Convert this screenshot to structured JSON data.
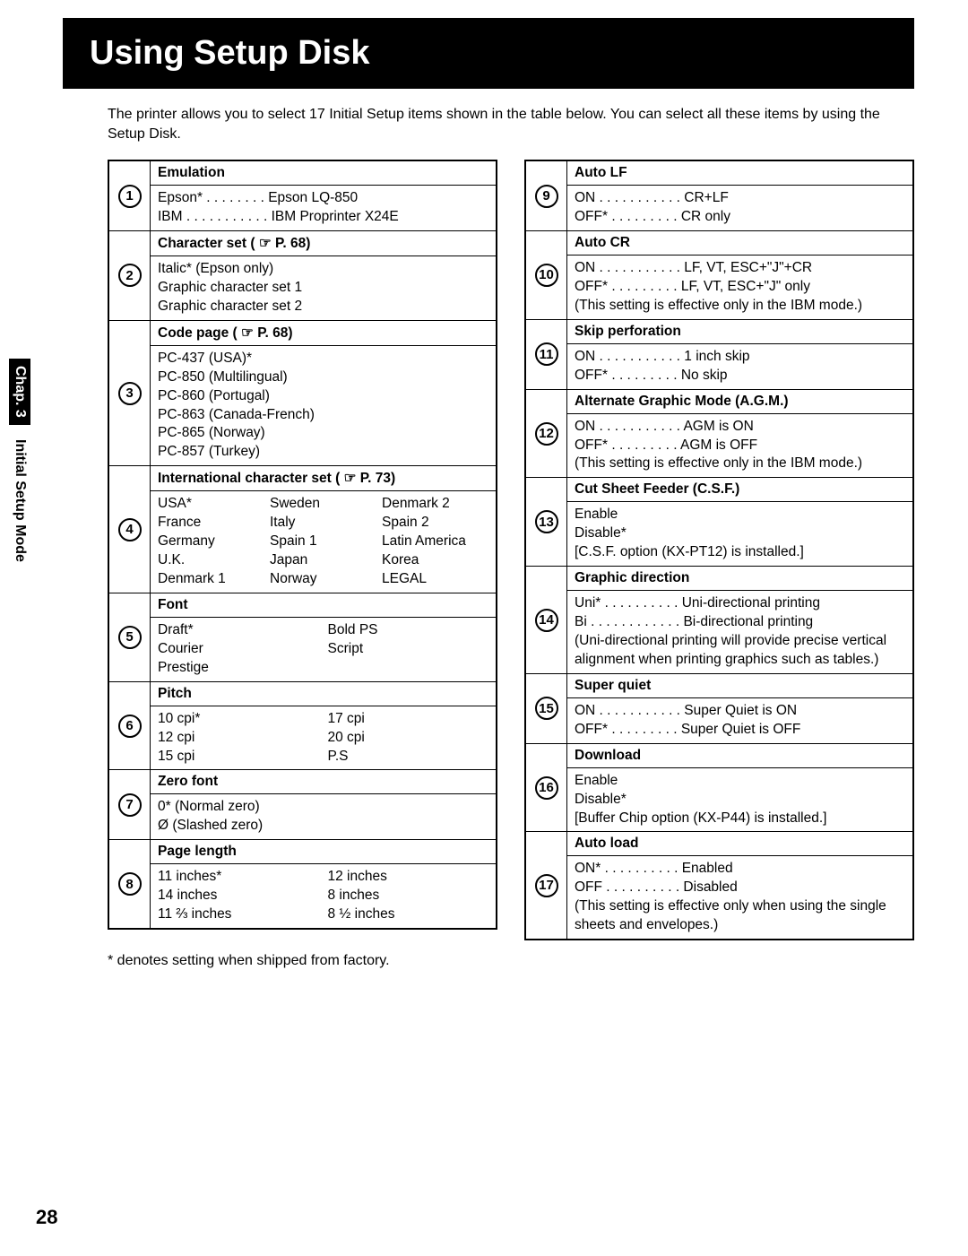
{
  "title": "Using Setup Disk",
  "intro": "The printer allows you to select 17 Initial Setup items shown in the table below. You can select all these items by using the Setup Disk.",
  "sidebar": {
    "chapter": "Chap. 3",
    "label": "Initial Setup Mode"
  },
  "page_number": "28",
  "footnote": "*  denotes setting when shipped from factory.",
  "left": [
    {
      "num": "1",
      "header": "Emulation",
      "lines": [
        "Epson*  . . . . . . . . Epson LQ-850",
        "IBM  . . . . . . . . . . . IBM Proprinter X24E"
      ]
    },
    {
      "num": "2",
      "header": "Character set ( ☞ P. 68)",
      "lines": [
        "Italic* (Epson only)",
        "Graphic character set 1",
        "Graphic character set 2"
      ]
    },
    {
      "num": "3",
      "header": "Code page ( ☞ P. 68)",
      "lines": [
        "PC-437 (USA)*",
        "PC-850 (Multilingual)",
        "PC-860 (Portugal)",
        "PC-863 (Canada-French)",
        "PC-865 (Norway)",
        "PC-857 (Turkey)"
      ]
    },
    {
      "num": "4",
      "header": "International character set ( ☞ P. 73)",
      "grid3": [
        "USA*",
        "Sweden",
        "Denmark 2",
        "France",
        "Italy",
        "Spain 2",
        "Germany",
        "Spain 1",
        "Latin America",
        "U.K.",
        "Japan",
        "Korea",
        "Denmark 1",
        "Norway",
        "LEGAL"
      ]
    },
    {
      "num": "5",
      "header": "Font",
      "grid2": [
        "Draft*",
        "Bold PS",
        "Courier",
        "Script",
        "Prestige",
        ""
      ]
    },
    {
      "num": "6",
      "header": "Pitch",
      "grid2": [
        "10 cpi*",
        "17 cpi",
        "12 cpi",
        "20 cpi",
        "15 cpi",
        "P.S"
      ]
    },
    {
      "num": "7",
      "header": "Zero font",
      "lines": [
        "0* (Normal zero)",
        "Ø (Slashed zero)"
      ]
    },
    {
      "num": "8",
      "header": "Page length",
      "grid2": [
        "11 inches*",
        "12 inches",
        "14 inches",
        "8 inches",
        "11 ⅔ inches",
        "8 ½ inches"
      ]
    }
  ],
  "right": [
    {
      "num": "9",
      "header": "Auto LF",
      "lines": [
        "ON  . . . . . . . . . . . CR+LF",
        "OFF*  . . . . . . . . . CR only"
      ]
    },
    {
      "num": "10",
      "header": "Auto CR",
      "lines": [
        "ON  . . . . . . . . . . . LF, VT, ESC+\"J\"+CR",
        "OFF*  . . . . . . . . . LF, VT, ESC+\"J\" only",
        "(This setting is effective only in the IBM mode.)"
      ]
    },
    {
      "num": "11",
      "header": "Skip perforation",
      "lines": [
        "ON  . . . . . . . . . . . 1 inch skip",
        "OFF*  . . . . . . . . . No skip"
      ]
    },
    {
      "num": "12",
      "header": "Alternate Graphic Mode (A.G.M.)",
      "lines": [
        "ON  . . . . . . . . . . . AGM is ON",
        "OFF*  . . . . . . . . . AGM is OFF",
        "(This setting is effective only in the IBM mode.)"
      ]
    },
    {
      "num": "13",
      "header": "Cut Sheet Feeder (C.S.F.)",
      "lines": [
        "Enable",
        "Disable*",
        "[C.S.F. option (KX-PT12) is installed.]"
      ]
    },
    {
      "num": "14",
      "header": "Graphic direction",
      "lines": [
        "Uni*  . . . . . . . . . . Uni-directional printing",
        "Bi  . . . . . . . . . . . . Bi-directional printing",
        "(Uni-directional printing will provide precise vertical alignment when printing graphics such as tables.)"
      ]
    },
    {
      "num": "15",
      "header": "Super quiet",
      "lines": [
        "ON  . . . . . . . . . . . Super Quiet is ON",
        "OFF*  . . . . . . . . . Super Quiet is OFF"
      ]
    },
    {
      "num": "16",
      "header": "Download",
      "lines": [
        "Enable",
        "Disable*",
        "[Buffer Chip option (KX-P44) is installed.]"
      ]
    },
    {
      "num": "17",
      "header": "Auto load",
      "lines": [
        "ON*  . . . . . . . . . . Enabled",
        "OFF  . . . . . . . . . . Disabled",
        "(This setting is effective only when using the single sheets and envelopes.)"
      ]
    }
  ]
}
